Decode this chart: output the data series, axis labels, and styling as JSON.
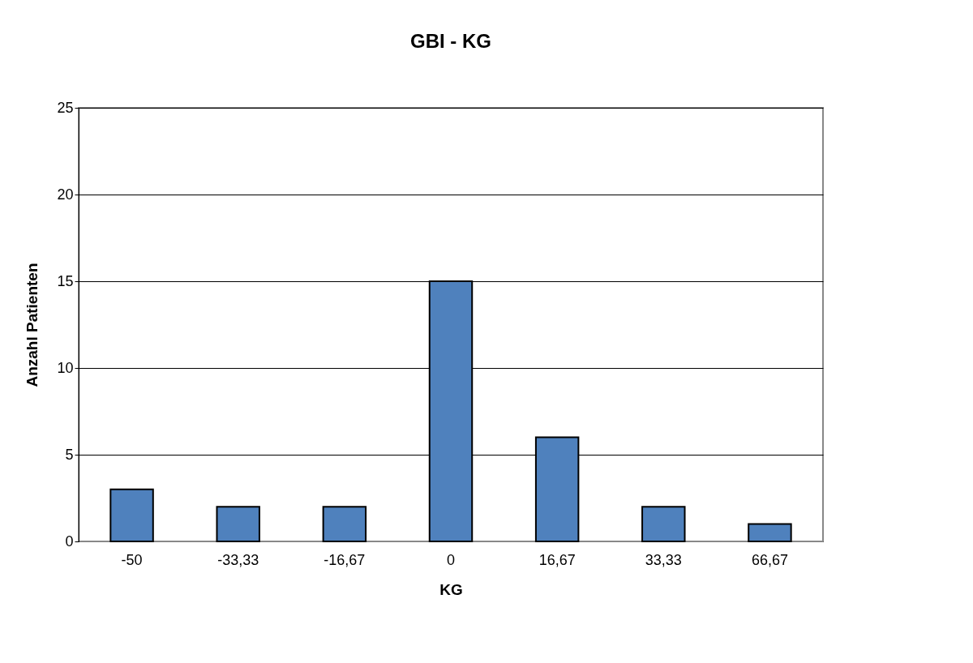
{
  "chart_data": {
    "type": "bar",
    "title": "GBI - KG",
    "xlabel": "KG",
    "ylabel": "Anzahl Patienten",
    "categories": [
      "-50",
      "-33,33",
      "-16,67",
      "0",
      "16,67",
      "33,33",
      "66,67"
    ],
    "series": [
      {
        "color": "#4f81bd",
        "values": [
          3,
          2,
          2,
          15,
          6,
          2,
          1
        ]
      }
    ],
    "ylim": [
      0,
      25
    ],
    "yticks": [
      0,
      5,
      10,
      15,
      20,
      25
    ],
    "grid": "y",
    "legend": false
  }
}
